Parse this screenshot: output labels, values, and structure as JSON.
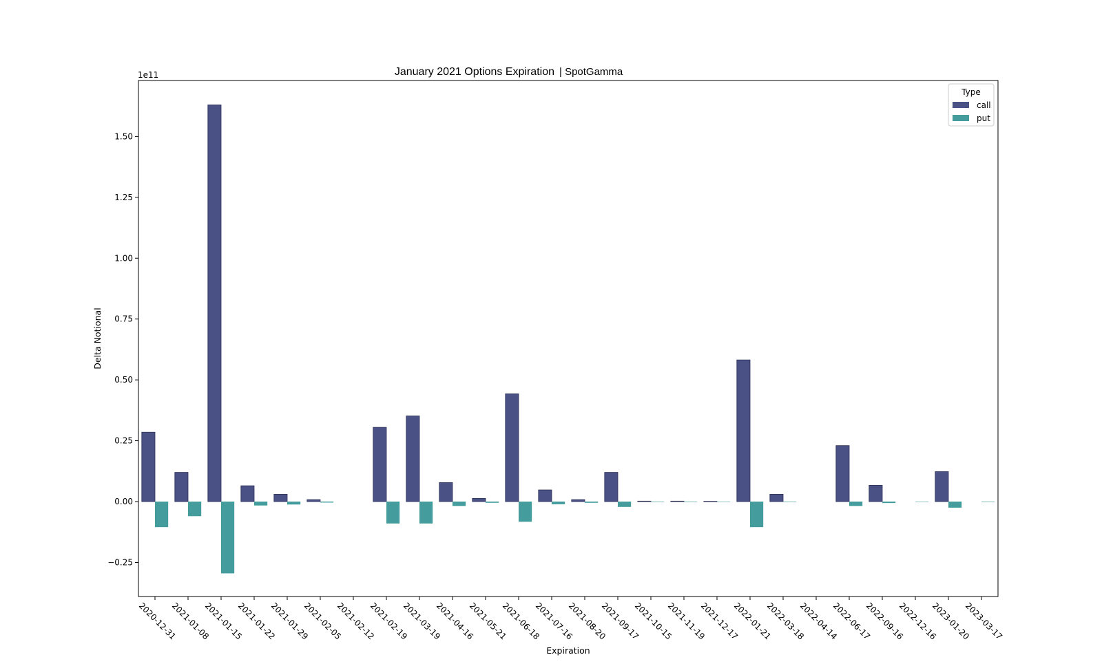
{
  "chart_data": {
    "type": "bar",
    "title": "January 2021 Options Expiration",
    "subtitle": "| SpotGamma",
    "xlabel": "Expiration",
    "ylabel": "Delta Notional",
    "y_scale_label": "1e11",
    "y_scale": 100000000000,
    "ylim": [
      -0.39,
      1.73
    ],
    "yticks": [
      -0.25,
      0.0,
      0.25,
      0.5,
      0.75,
      1.0,
      1.25,
      1.5
    ],
    "ytick_labels": [
      "−0.25",
      "0.00",
      "0.25",
      "0.50",
      "0.75",
      "1.00",
      "1.25",
      "1.50"
    ],
    "grid": false,
    "legend": {
      "title": "Type",
      "position": "top-right"
    },
    "categories": [
      "2020-12-31",
      "2021-01-08",
      "2021-01-15",
      "2021-01-22",
      "2021-01-29",
      "2021-02-05",
      "2021-02-12",
      "2021-02-19",
      "2021-03-19",
      "2021-04-16",
      "2021-05-21",
      "2021-06-18",
      "2021-07-16",
      "2021-08-20",
      "2021-09-17",
      "2021-10-15",
      "2021-11-19",
      "2021-12-17",
      "2022-01-21",
      "2022-03-18",
      "2022-04-14",
      "2022-06-17",
      "2022-09-16",
      "2022-12-16",
      "2023-01-20",
      "2023-03-17"
    ],
    "series": [
      {
        "name": "call",
        "color": "#4a5185",
        "values": [
          0.285,
          0.12,
          1.63,
          0.065,
          0.03,
          0.008,
          0,
          0.305,
          0.352,
          0.078,
          0.013,
          0.443,
          0.048,
          0.008,
          0.12,
          0.002,
          0.002,
          0.001,
          0.582,
          0.03,
          0,
          0.23,
          0.067,
          0,
          0.123,
          0
        ]
      },
      {
        "name": "put",
        "color": "#449d9c",
        "values": [
          -0.105,
          -0.06,
          -0.295,
          -0.016,
          -0.012,
          -0.004,
          0,
          -0.09,
          -0.09,
          -0.018,
          -0.005,
          -0.083,
          -0.011,
          -0.005,
          -0.022,
          -0.002,
          -0.002,
          -0.001,
          -0.105,
          -0.002,
          0,
          -0.018,
          -0.006,
          -0.001,
          -0.025,
          -0.002
        ]
      }
    ]
  }
}
